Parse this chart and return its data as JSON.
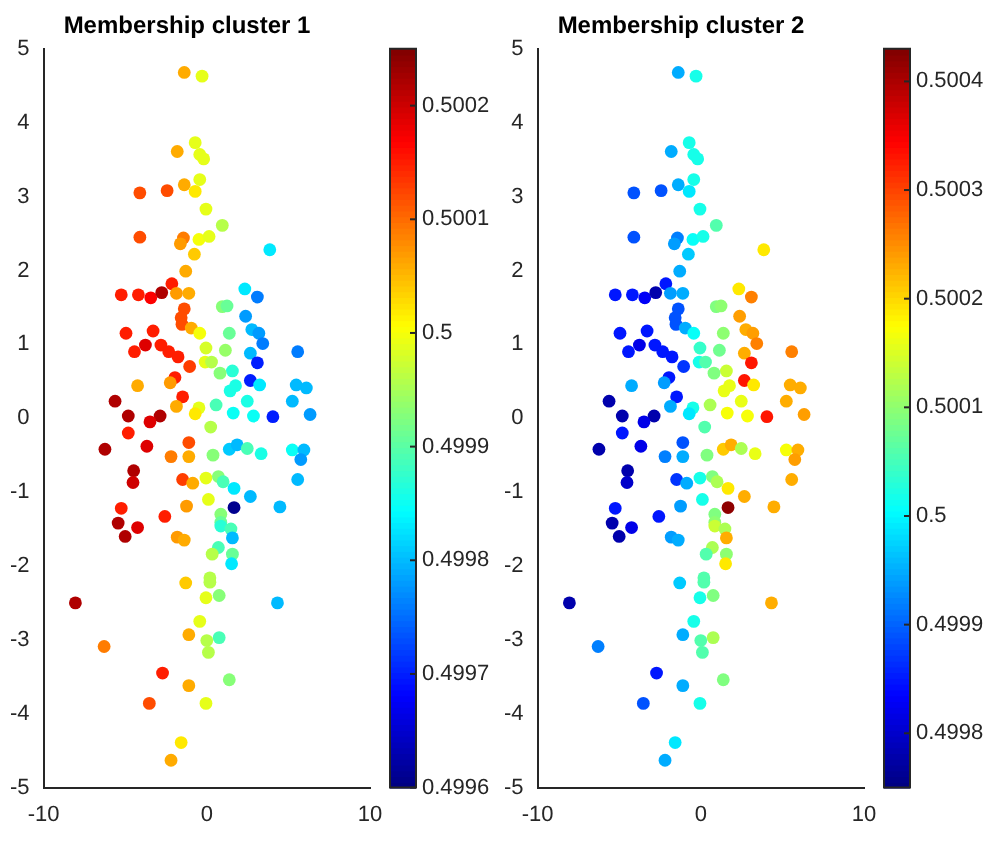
{
  "chart_data": [
    {
      "type": "scatter",
      "title": "Membership cluster 1",
      "x": [
        -1.38,
        -0.29,
        -0.71,
        -1.81,
        -0.43,
        -0.19,
        -4.1,
        -2.43,
        -1.38,
        -0.43,
        -0.71,
        -0.05,
        0.95,
        -4.1,
        -1.43,
        -1.62,
        -0.48,
        0.14,
        3.86,
        -0.76,
        -1.29,
        -5.24,
        -4.19,
        -3.43,
        -2.76,
        -2.14,
        -1.86,
        -1.1,
        2.33,
        3.1,
        0.95,
        1.24,
        -1.38,
        -1.57,
        2.38,
        -4.95,
        -3.29,
        -1.52,
        -0.95,
        -0.43,
        1.38,
        2.76,
        3.19,
        3.43,
        -4.43,
        -3.76,
        -2.81,
        -2.33,
        -0.05,
        1.14,
        2.67,
        5.57,
        -1.76,
        -0.1,
        0.29,
        3.1,
        -1.05,
        1.57,
        0.81,
        -1.95,
        2.67,
        3.24,
        1.76,
        1.43,
        -4.24,
        -2.24,
        5.48,
        6.1,
        -5.62,
        -1.48,
        -1.86,
        0.57,
        -0.48,
        2.48,
        5.24,
        -4.81,
        -2.86,
        -3.48,
        -0.71,
        1.62,
        2.86,
        4.05,
        6.33,
        -4.81,
        -6.24,
        -3.67,
        -2.19,
        -1.1,
        -1.1,
        0.24,
        0.38,
        1.38,
        1.86,
        2.48,
        3.33,
        5.24,
        5.95,
        5.76,
        -4.48,
        -4.52,
        -1.48,
        -0.86,
        -0.05,
        0.71,
        1.0,
        1.67,
        2.67,
        5.57,
        0.1,
        -5.24,
        -1.24,
        1.67,
        4.48,
        0.86,
        -5.43,
        -4.24,
        -5.0,
        -2.57,
        0.86,
        0.86,
        1.48,
        1.57,
        -1.81,
        -1.38,
        0.71,
        0.33,
        1.57,
        1.52,
        -1.29,
        0.19,
        0.19,
        0.76,
        -0.05,
        -8.05,
        4.33,
        -0.43,
        -1.1,
        0.76,
        0,
        0.1,
        -6.29,
        -2.71,
        -1.1,
        1.38,
        -3.52,
        -0.05,
        -1.57,
        -2.19
      ],
      "values": [
        4.68,
        4.63,
        3.73,
        3.61,
        3.57,
        3.51,
        3.05,
        3.08,
        3.16,
        3.23,
        3.07,
        2.83,
        2.61,
        2.45,
        2.44,
        2.36,
        2.42,
        2.46,
        2.28,
        2.22,
        1.99,
        1.67,
        1.67,
        1.63,
        1.7,
        1.82,
        1.69,
        1.69,
        1.75,
        1.64,
        1.51,
        1.52,
        1.48,
        1.36,
        1.38,
        1.15,
        1.18,
        1.27,
        1.22,
        1.15,
        1.15,
        1.2,
        1.15,
        1.01,
        0.9,
        0.99,
        0.99,
        0.9,
        0.95,
        0.92,
        0.88,
        0.9,
        0.83,
        0.76,
        0.76,
        0.75,
        0.7,
        0.64,
        0.61,
        0.55,
        0.51,
        0.45,
        0.44,
        0.37,
        0.44,
        0.48,
        0.45,
        0.41,
        0.23,
        0.29,
        0.16,
        0.18,
        0.14,
        0.23,
        0.23,
        0.03,
        0.03,
        -0.05,
        0.06,
        0.07,
        0.03,
        0.02,
        0.05,
        -0.2,
        -0.42,
        -0.38,
        -0.52,
        -0.52,
        -0.33,
        -0.12,
        -0.5,
        -0.42,
        -0.36,
        -0.41,
        -0.48,
        -0.43,
        -0.43,
        -0.56,
        -0.71,
        -0.87,
        -0.83,
        -0.88,
        -0.81,
        -0.79,
        -0.86,
        -0.95,
        -1.06,
        -0.83,
        -1.1,
        -1.22,
        -1.19,
        -1.21,
        -1.2,
        -1.3,
        -1.42,
        -1.48,
        -1.6,
        -1.33,
        -1.41,
        -1.46,
        -1.5,
        -1.62,
        -1.61,
        -1.65,
        -1.75,
        -1.84,
        -1.84,
        -1.97,
        -2.23,
        -2.16,
        -2.22,
        -2.4,
        -2.43,
        -2.5,
        -2.5,
        -2.75,
        -2.93,
        -2.97,
        -3.01,
        -3.17,
        -3.09,
        -3.45,
        -3.62,
        -3.54,
        -3.86,
        -3.86,
        -4.39,
        -4.63
      ],
      "cvalues": [
        0.50006,
        0.49999,
        0.49999,
        0.50006,
        0.49999,
        0.49999,
        0.50012,
        0.50012,
        0.50006,
        0.49999,
        0.50002,
        0.49999,
        0.49996,
        0.50012,
        0.50009,
        0.50007,
        0.5,
        0.49999,
        0.49983,
        0.50004,
        0.50006,
        0.50015,
        0.50015,
        0.50017,
        0.50022,
        0.50015,
        0.50007,
        0.50006,
        0.49983,
        0.49976,
        0.49993,
        0.49991,
        0.50012,
        0.50012,
        0.49978,
        0.50015,
        0.50015,
        0.50012,
        0.50006,
        0.5,
        0.49991,
        0.4998,
        0.49978,
        0.49976,
        0.50015,
        0.50019,
        0.50015,
        0.50015,
        0.49998,
        0.49994,
        0.4998,
        0.49976,
        0.50015,
        0.49999,
        0.49996,
        0.4997,
        0.50013,
        0.49987,
        0.49993,
        0.50015,
        0.4997,
        0.49983,
        0.49986,
        0.49986,
        0.50006,
        0.50007,
        0.4998,
        0.4998,
        0.50022,
        0.50015,
        0.50006,
        0.49989,
        0.49999,
        0.49986,
        0.4998,
        0.50022,
        0.50022,
        0.50019,
        0.50002,
        0.49985,
        0.49985,
        0.4997,
        0.49978,
        0.50015,
        0.50022,
        0.50019,
        0.50009,
        0.50006,
        0.50012,
        0.49996,
        0.49993,
        0.49981,
        0.4998,
        0.49989,
        0.49986,
        0.49985,
        0.4998,
        0.49978,
        0.50022,
        0.5002,
        0.50013,
        0.50006,
        0.49999,
        0.49993,
        0.49989,
        0.49983,
        0.4998,
        0.4998,
        0.49999,
        0.50015,
        0.50007,
        0.49961,
        0.4998,
        0.49993,
        0.50022,
        0.50019,
        0.50022,
        0.50015,
        0.49991,
        0.49987,
        0.49989,
        0.4998,
        0.50007,
        0.50006,
        0.49989,
        0.49996,
        0.49991,
        0.49983,
        0.50004,
        0.49996,
        0.49996,
        0.49993,
        0.49999,
        0.50022,
        0.4998,
        0.49999,
        0.50006,
        0.49989,
        0.49996,
        0.49996,
        0.50009,
        0.50015,
        0.50006,
        0.49993,
        0.50012,
        0.49999,
        0.50002,
        0.50006
      ],
      "clim": [
        0.4996,
        0.50025
      ],
      "cticks": [
        0.4996,
        0.4997,
        0.4998,
        0.4999,
        0.5,
        0.5001,
        0.5002
      ],
      "xlim": [
        -10,
        10
      ],
      "ylim": [
        -5,
        5
      ],
      "xticks": [
        -10,
        0,
        10
      ],
      "yticks": [
        -5,
        -4,
        -3,
        -2,
        -1,
        0,
        1,
        2,
        3,
        4,
        5
      ]
    },
    {
      "type": "scatter",
      "title": "Membership cluster 2",
      "x": [
        -1.38,
        -0.29,
        -0.71,
        -1.81,
        -0.43,
        -0.19,
        -4.1,
        -2.43,
        -1.38,
        -0.43,
        -0.71,
        -0.05,
        0.95,
        -4.1,
        -1.43,
        -1.62,
        -0.48,
        0.14,
        3.86,
        -0.76,
        -1.29,
        -5.24,
        -4.19,
        -3.43,
        -2.76,
        -2.14,
        -1.86,
        -1.1,
        2.33,
        3.1,
        0.95,
        1.24,
        -1.38,
        -1.57,
        2.38,
        -4.95,
        -3.29,
        -1.52,
        -0.95,
        -0.43,
        1.38,
        2.76,
        3.19,
        3.43,
        -4.43,
        -3.76,
        -2.81,
        -2.33,
        -0.05,
        1.14,
        2.67,
        5.57,
        -1.76,
        -0.1,
        0.29,
        3.1,
        -1.05,
        1.57,
        0.81,
        -1.95,
        2.67,
        3.24,
        1.76,
        1.43,
        -4.24,
        -2.24,
        5.48,
        6.1,
        -5.62,
        -1.48,
        -1.86,
        0.57,
        -0.48,
        2.48,
        5.24,
        -4.81,
        -2.86,
        -3.48,
        -0.71,
        1.62,
        2.86,
        4.05,
        6.33,
        -4.81,
        -6.24,
        -3.67,
        -2.19,
        -1.1,
        -1.1,
        0.24,
        0.38,
        1.38,
        1.86,
        2.48,
        3.33,
        5.24,
        5.95,
        5.76,
        -4.48,
        -4.52,
        -1.48,
        -0.86,
        -0.05,
        0.71,
        1.0,
        1.67,
        2.67,
        5.57,
        0.1,
        -5.24,
        -1.24,
        1.67,
        4.48,
        0.86,
        -5.43,
        -4.24,
        -5.0,
        -2.57,
        0.86,
        0.86,
        1.48,
        1.57,
        -1.81,
        -1.38,
        0.71,
        0.33,
        1.57,
        1.52,
        -1.29,
        0.19,
        0.19,
        0.76,
        -0.05,
        -8.05,
        4.33,
        -0.43,
        -1.1,
        0.76,
        0,
        0.1,
        -6.29,
        -2.71,
        -1.1,
        1.38,
        -3.52,
        -0.05,
        -1.57,
        -2.19
      ],
      "values": [
        4.68,
        4.63,
        3.73,
        3.61,
        3.57,
        3.51,
        3.05,
        3.08,
        3.16,
        3.23,
        3.07,
        2.83,
        2.61,
        2.45,
        2.44,
        2.36,
        2.42,
        2.46,
        2.28,
        2.22,
        1.99,
        1.67,
        1.67,
        1.63,
        1.7,
        1.82,
        1.69,
        1.69,
        1.75,
        1.64,
        1.51,
        1.52,
        1.48,
        1.36,
        1.38,
        1.15,
        1.18,
        1.27,
        1.22,
        1.15,
        1.15,
        1.2,
        1.15,
        1.01,
        0.9,
        0.99,
        0.99,
        0.9,
        0.95,
        0.92,
        0.88,
        0.9,
        0.83,
        0.76,
        0.76,
        0.75,
        0.7,
        0.64,
        0.61,
        0.55,
        0.51,
        0.45,
        0.44,
        0.37,
        0.44,
        0.48,
        0.45,
        0.41,
        0.23,
        0.29,
        0.16,
        0.18,
        0.14,
        0.23,
        0.23,
        0.03,
        0.03,
        -0.05,
        0.06,
        0.07,
        0.03,
        0.02,
        0.05,
        -0.2,
        -0.42,
        -0.38,
        -0.52,
        -0.52,
        -0.33,
        -0.12,
        -0.5,
        -0.42,
        -0.36,
        -0.41,
        -0.48,
        -0.43,
        -0.43,
        -0.56,
        -0.71,
        -0.87,
        -0.83,
        -0.88,
        -0.81,
        -0.79,
        -0.86,
        -0.95,
        -1.06,
        -0.83,
        -1.1,
        -1.22,
        -1.19,
        -1.21,
        -1.2,
        -1.3,
        -1.42,
        -1.48,
        -1.6,
        -1.33,
        -1.41,
        -1.46,
        -1.5,
        -1.62,
        -1.61,
        -1.65,
        -1.75,
        -1.84,
        -1.84,
        -1.97,
        -2.23,
        -2.16,
        -2.22,
        -2.4,
        -2.43,
        -2.5,
        -2.5,
        -2.75,
        -2.93,
        -2.97,
        -3.01,
        -3.17,
        -3.09,
        -3.45,
        -3.62,
        -3.54,
        -3.86,
        -3.86,
        -4.39,
        -4.63
      ],
      "cvalues": [
        0.49995,
        0.50002,
        0.50002,
        0.49995,
        0.50002,
        0.50002,
        0.49989,
        0.49989,
        0.49995,
        0.50002,
        0.49999,
        0.50002,
        0.50006,
        0.49989,
        0.49992,
        0.49994,
        0.50001,
        0.50002,
        0.50019,
        0.49997,
        0.49995,
        0.49985,
        0.49985,
        0.49983,
        0.49978,
        0.49985,
        0.49994,
        0.49995,
        0.50019,
        0.50026,
        0.50009,
        0.5001,
        0.49989,
        0.49989,
        0.50024,
        0.49985,
        0.49985,
        0.49989,
        0.49995,
        0.50001,
        0.5001,
        0.50023,
        0.50024,
        0.50026,
        0.49985,
        0.49982,
        0.49985,
        0.49985,
        0.50004,
        0.50008,
        0.50023,
        0.50026,
        0.49985,
        0.50002,
        0.50006,
        0.50033,
        0.49987,
        0.50014,
        0.50009,
        0.49985,
        0.50033,
        0.50019,
        0.50016,
        0.50016,
        0.49995,
        0.49994,
        0.50023,
        0.50023,
        0.49978,
        0.49985,
        0.49995,
        0.50012,
        0.50002,
        0.50016,
        0.50023,
        0.49978,
        0.49978,
        0.49982,
        0.49999,
        0.50017,
        0.50017,
        0.50033,
        0.50024,
        0.49985,
        0.49978,
        0.49982,
        0.49992,
        0.49995,
        0.49989,
        0.50006,
        0.50009,
        0.50021,
        0.50023,
        0.50012,
        0.50016,
        0.50017,
        0.50023,
        0.50024,
        0.49978,
        0.4998,
        0.49987,
        0.49995,
        0.50002,
        0.50009,
        0.50012,
        0.50019,
        0.50023,
        0.50023,
        0.50002,
        0.49985,
        0.49994,
        0.50042,
        0.50023,
        0.50009,
        0.49978,
        0.49982,
        0.49978,
        0.49985,
        0.5001,
        0.50014,
        0.50012,
        0.50023,
        0.49994,
        0.49995,
        0.50012,
        0.50006,
        0.5001,
        0.50019,
        0.49997,
        0.50006,
        0.50006,
        0.50009,
        0.50002,
        0.49978,
        0.50023,
        0.50002,
        0.49995,
        0.50012,
        0.50006,
        0.50006,
        0.49992,
        0.49985,
        0.49995,
        0.50009,
        0.49989,
        0.50002,
        0.49999,
        0.49995
      ],
      "clim": [
        0.49975,
        0.50043
      ],
      "cticks": [
        0.4998,
        0.4999,
        0.5,
        0.5001,
        0.5002,
        0.5003,
        0.5004
      ],
      "xlim": [
        -10,
        10
      ],
      "ylim": [
        -5,
        5
      ],
      "xticks": [
        -10,
        0,
        10
      ],
      "yticks": [
        -5,
        -4,
        -3,
        -2,
        -1,
        0,
        1,
        2,
        3,
        4,
        5
      ]
    }
  ]
}
